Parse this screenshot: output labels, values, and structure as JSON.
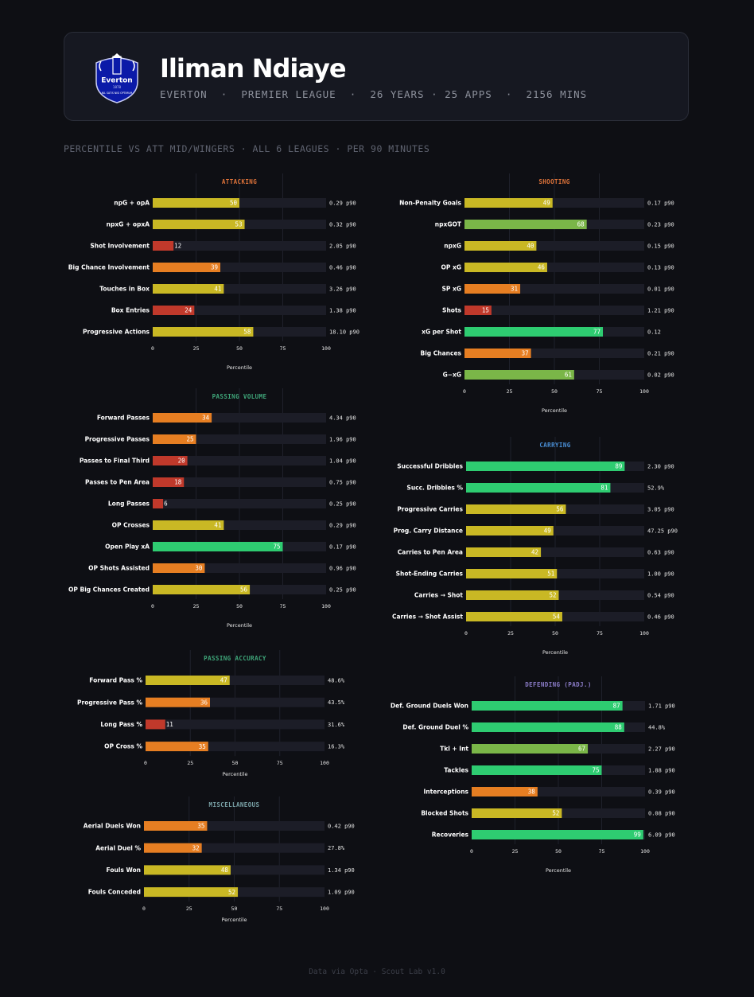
{
  "header": {
    "player_name": "Iliman Ndiaye",
    "club": "EVERTON",
    "league": "PREMIER LEAGUE",
    "age": "26 YEARS",
    "apps": "25 APPS",
    "minutes": "2156 MINS",
    "crest": {
      "word": "Everton",
      "year": "1878",
      "motto": "NIL SATIS NISI OPTIMUM"
    }
  },
  "subtitle": "PERCENTILE VS ATT MID/WINGERS · ALL 6 LEAGUES · PER 90 MINUTES",
  "footer": "Data via Opta · Scout Lab v1.0",
  "colors": {
    "red": "#c0392b",
    "orange": "#e67e22",
    "yellow": "#c9b824",
    "lightgreen": "#7ab648",
    "green": "#2ecc71",
    "track": "#1c1d27",
    "title_attacking": "#e0743a",
    "title_shooting": "#e0743a",
    "title_passing": "#3fa77a",
    "title_carrying": "#4a8fd6",
    "title_defending": "#8b7cc8",
    "title_misc": "#7aa3a8"
  },
  "chart_data": [
    {
      "type": "bar",
      "id": "attacking",
      "title": "ATTACKING",
      "xlabel": "Percentile",
      "xlim": [
        0,
        100
      ],
      "xticks": [
        0,
        25,
        50,
        75,
        100
      ],
      "categories": [
        "npG + opA",
        "npxG + opxA",
        "Shot Involvement",
        "Big Chance Involvement",
        "Touches in Box",
        "Box Entries",
        "Progressive Actions"
      ],
      "values": [
        50,
        53,
        12,
        39,
        41,
        24,
        58
      ],
      "raw": [
        "0.29 p90",
        "0.32 p90",
        "2.05 p90",
        "0.46 p90",
        "3.26 p90",
        "1.38 p90",
        "18.10 p90"
      ]
    },
    {
      "type": "bar",
      "id": "shooting",
      "title": "SHOOTING",
      "xlabel": "Percentile",
      "xlim": [
        0,
        100
      ],
      "xticks": [
        0,
        25,
        50,
        75,
        100
      ],
      "categories": [
        "Non-Penalty Goals",
        "npxGOT",
        "npxG",
        "OP xG",
        "SP xG",
        "Shots",
        "xG per Shot",
        "Big Chances",
        "G−xG"
      ],
      "values": [
        49,
        68,
        40,
        46,
        31,
        15,
        77,
        37,
        61
      ],
      "raw": [
        "0.17 p90",
        "0.23 p90",
        "0.15 p90",
        "0.13 p90",
        "0.01 p90",
        "1.21 p90",
        "0.12",
        "0.21 p90",
        "0.02 p90"
      ]
    },
    {
      "type": "bar",
      "id": "passing_volume",
      "title": "PASSING VOLUME",
      "xlabel": "Percentile",
      "xlim": [
        0,
        100
      ],
      "xticks": [
        0,
        25,
        50,
        75,
        100
      ],
      "categories": [
        "Forward Passes",
        "Progressive Passes",
        "Passes to Final Third",
        "Passes to Pen Area",
        "Long Passes",
        "OP Crosses",
        "Open Play xA",
        "OP Shots Assisted",
        "OP Big Chances Created"
      ],
      "values": [
        34,
        25,
        20,
        18,
        6,
        41,
        75,
        30,
        56
      ],
      "raw": [
        "4.34 p90",
        "1.96 p90",
        "1.04 p90",
        "0.75 p90",
        "0.25 p90",
        "0.29 p90",
        "0.17 p90",
        "0.96 p90",
        "0.25 p90"
      ]
    },
    {
      "type": "bar",
      "id": "carrying",
      "title": "CARRYING",
      "xlabel": "Percentile",
      "xlim": [
        0,
        100
      ],
      "xticks": [
        0,
        25,
        50,
        75,
        100
      ],
      "categories": [
        "Successful Dribbles",
        "Succ. Dribbles %",
        "Progressive Carries",
        "Prog. Carry Distance",
        "Carries to Pen Area",
        "Shot-Ending Carries",
        "Carries → Shot",
        "Carries → Shot Assist"
      ],
      "values": [
        89,
        81,
        56,
        49,
        42,
        51,
        52,
        54
      ],
      "raw": [
        "2.30 p90",
        "52.9%",
        "3.05 p90",
        "47.25 p90",
        "0.63 p90",
        "1.00 p90",
        "0.54 p90",
        "0.46 p90"
      ]
    },
    {
      "type": "bar",
      "id": "passing_accuracy",
      "title": "PASSING ACCURACY",
      "xlabel": "Percentile",
      "xlim": [
        0,
        100
      ],
      "xticks": [
        0,
        25,
        50,
        75,
        100
      ],
      "categories": [
        "Forward Pass %",
        "Progressive Pass %",
        "Long Pass %",
        "OP Cross %"
      ],
      "values": [
        47,
        36,
        11,
        35
      ],
      "raw": [
        "48.6%",
        "43.5%",
        "31.6%",
        "16.3%"
      ]
    },
    {
      "type": "bar",
      "id": "defending",
      "title": "DEFENDING (PADJ.)",
      "xlabel": "Percentile",
      "xlim": [
        0,
        100
      ],
      "xticks": [
        0,
        25,
        50,
        75,
        100
      ],
      "categories": [
        "Def. Ground Duels Won",
        "Def. Ground Duel %",
        "Tkl + Int",
        "Tackles",
        "Interceptions",
        "Blocked Shots",
        "Recoveries"
      ],
      "values": [
        87,
        88,
        67,
        75,
        38,
        52,
        99
      ],
      "raw": [
        "1.71 p90",
        "44.8%",
        "2.27 p90",
        "1.88 p90",
        "0.39 p90",
        "0.08 p90",
        "6.09 p90"
      ]
    },
    {
      "type": "bar",
      "id": "misc",
      "title": "MISCELLANEOUS",
      "xlabel": "Percentile",
      "xlim": [
        0,
        100
      ],
      "xticks": [
        0,
        25,
        50,
        75,
        100
      ],
      "categories": [
        "Aerial Duels Won",
        "Aerial Duel %",
        "Fouls Won",
        "Fouls Conceded"
      ],
      "values": [
        35,
        32,
        48,
        52
      ],
      "raw": [
        "0.42 p90",
        "27.8%",
        "1.34 p90",
        "1.09 p90"
      ]
    }
  ]
}
